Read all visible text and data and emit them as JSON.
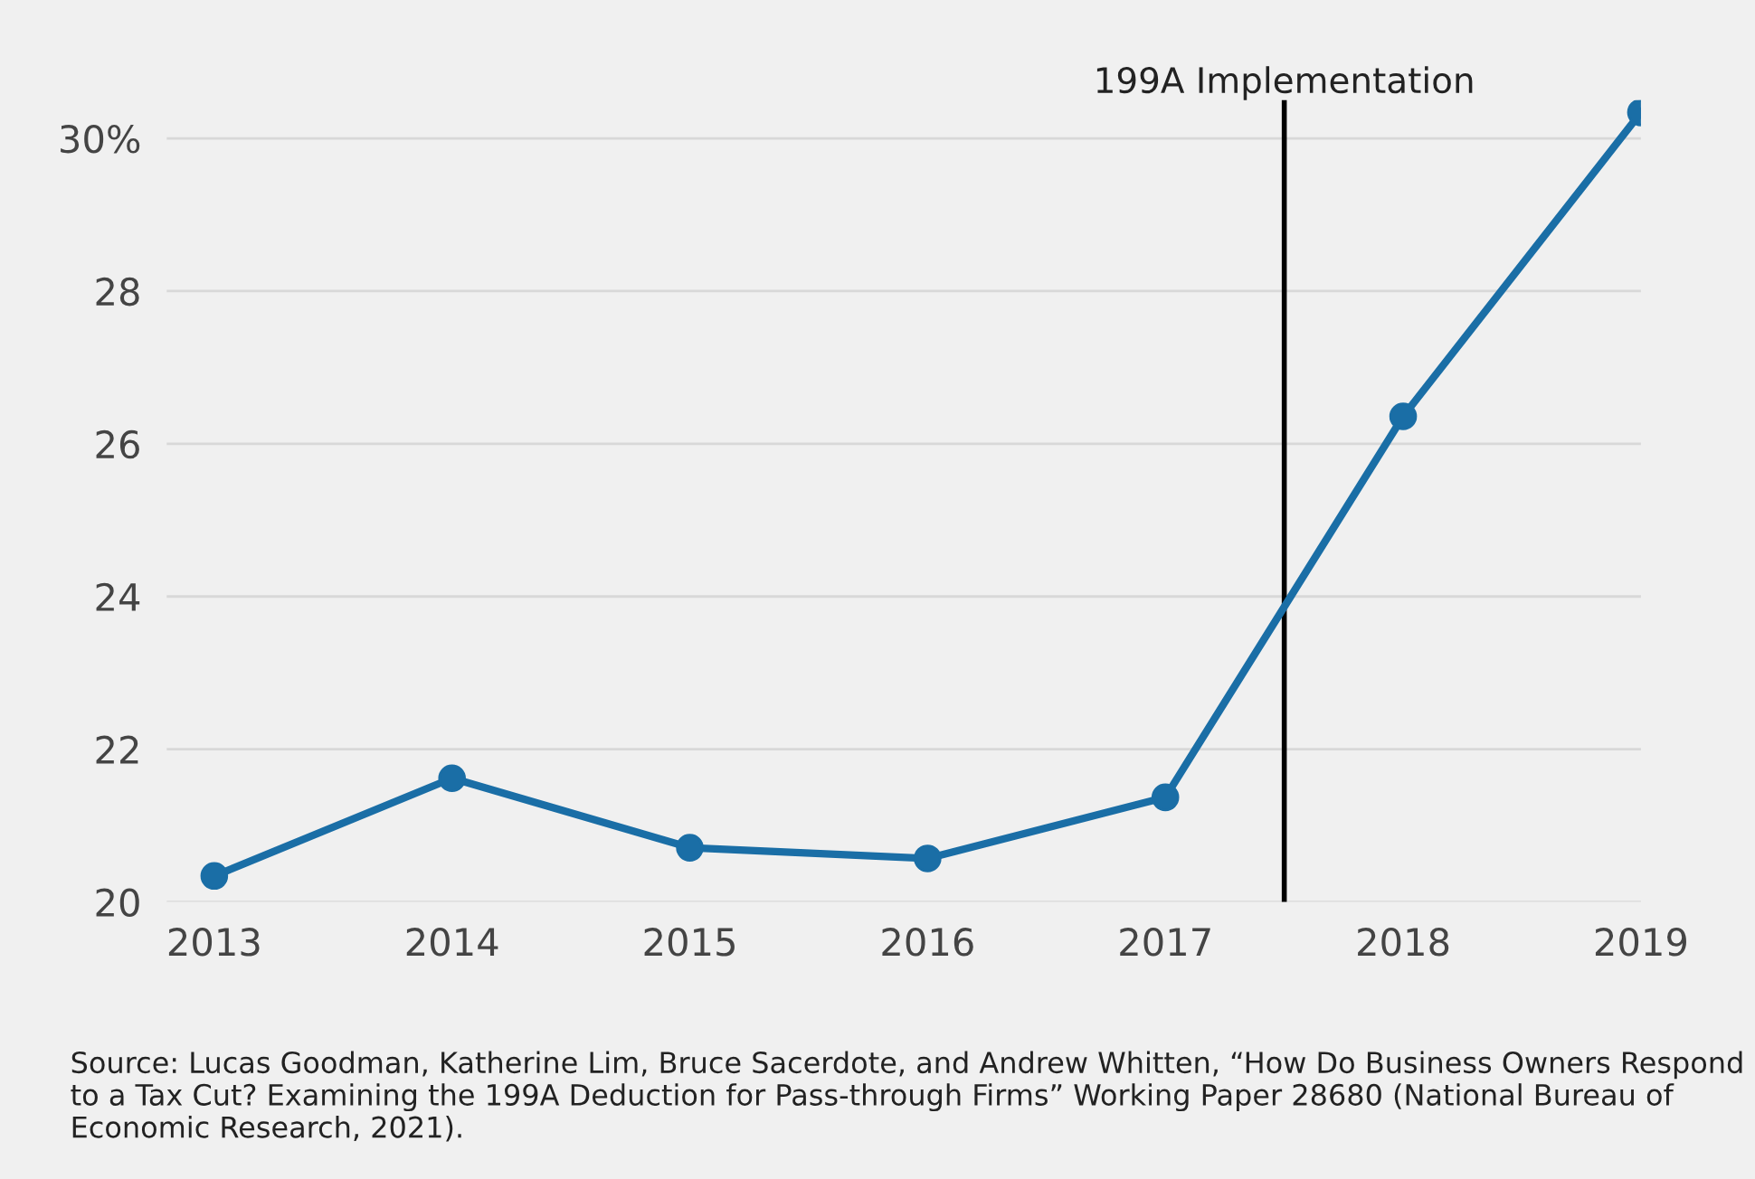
{
  "chart_data": {
    "type": "line",
    "x": [
      2013,
      2014,
      2015,
      2016,
      2017,
      2018,
      2019
    ],
    "series": [
      {
        "color": "#1a6ea6",
        "values": [
          20.34,
          21.62,
          20.71,
          20.57,
          21.37,
          26.36,
          30.34
        ]
      }
    ],
    "xlim": [
      2012.8,
      2019.0
    ],
    "xticks": [
      2013,
      2014,
      2015,
      2016,
      2017,
      2018,
      2019
    ],
    "ylim": [
      20,
      30.5
    ],
    "yticks": [
      20,
      22,
      24,
      26,
      28,
      {
        "value": 30,
        "label": "30%"
      }
    ],
    "grid": "y",
    "marker": "circle",
    "line_style": "solid",
    "legend": false,
    "ref_lines": [
      {
        "axis": "x",
        "value": 2017.5,
        "label": "199A Implementation",
        "color": "#000000",
        "line_style": "solid"
      }
    ],
    "annotations": [
      "Source: Lucas Goodman, Katherine Lim, Bruce Sacerdote, and Andrew Whitten, “How Do Business Owners Respond to a Tax Cut? Examining the 199A Deduction for Pass-through Firms” Working Paper 28680 (National Bureau of Economic Research, 2021)."
    ]
  }
}
